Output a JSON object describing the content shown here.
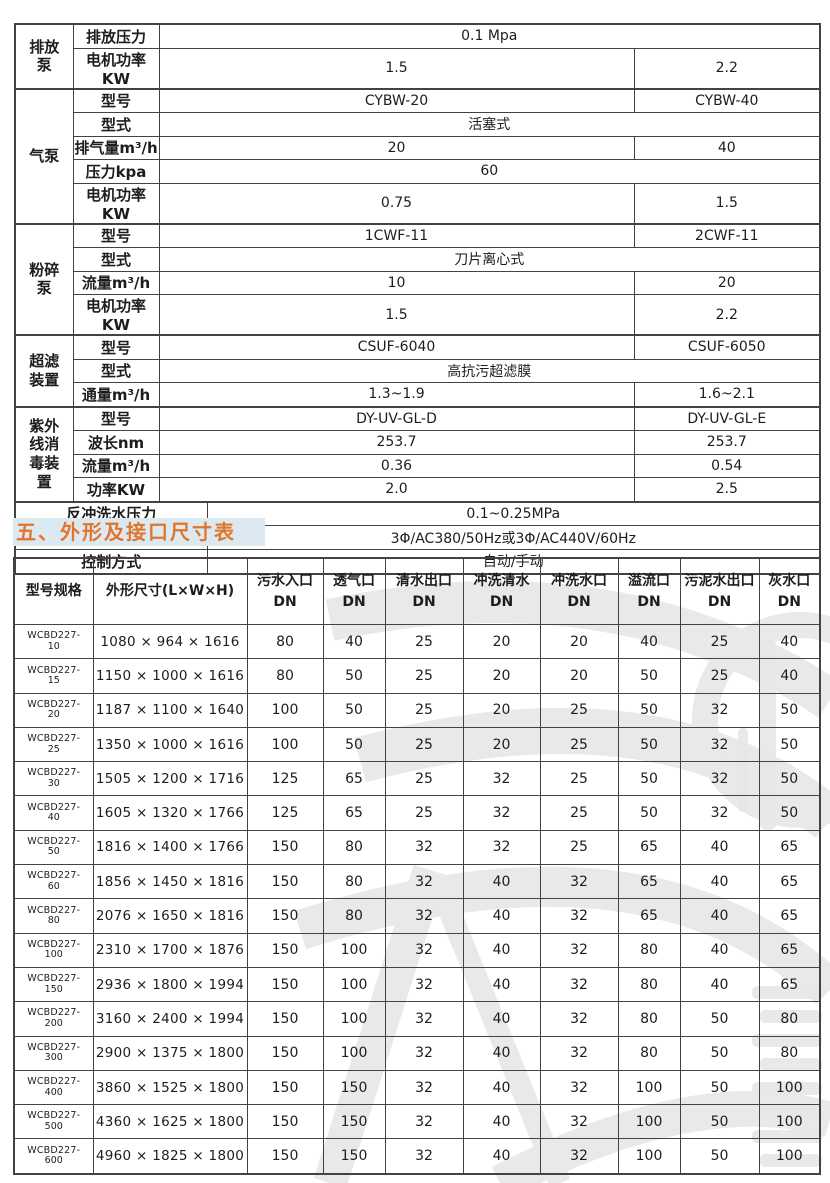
{
  "colors": {
    "border": "#434343",
    "title_orange": "#e0762c",
    "title_bar_bg": "#dde9f0",
    "watermark_gray": "#e7e7e7"
  },
  "section": {
    "title": "五、外形及接口尺寸表"
  },
  "spec_table": {
    "groups": [
      {
        "name": "排放泵",
        "rows": [
          {
            "label": "排放压力",
            "span": "0.1 Mpa"
          },
          {
            "label": "电机功率KW",
            "v1": "1.5",
            "v2": "2.2"
          }
        ]
      },
      {
        "name": "气泵",
        "rows": [
          {
            "label": "型号",
            "v1": "CYBW-20",
            "v2": "CYBW-40"
          },
          {
            "label": "型式",
            "span": "活塞式"
          },
          {
            "label": "排气量m³/h",
            "v1": "20",
            "v2": "40"
          },
          {
            "label": "压力kpa",
            "span": "60"
          },
          {
            "label": "电机功率KW",
            "v1": "0.75",
            "v2": "1.5"
          }
        ]
      },
      {
        "name": "粉碎泵",
        "rows": [
          {
            "label": "型号",
            "v1": "1CWF-11",
            "v2": "2CWF-11"
          },
          {
            "label": "型式",
            "span": "刀片离心式"
          },
          {
            "label": "流量m³/h",
            "v1": "10",
            "v2": "20"
          },
          {
            "label": "电机功率KW",
            "v1": "1.5",
            "v2": "2.2"
          }
        ]
      },
      {
        "name": "超滤装置",
        "rows": [
          {
            "label": "型号",
            "v1": "CSUF-6040",
            "v2": "CSUF-6050"
          },
          {
            "label": "型式",
            "span": "高抗污超滤膜"
          },
          {
            "label": "通量m³/h",
            "v1": "1.3~1.9",
            "v2": "1.6~2.1"
          }
        ]
      },
      {
        "name": "紫外线消毒装置",
        "rows": [
          {
            "label": "型号",
            "v1": "DY-UV-GL-D",
            "v2": "DY-UV-GL-E"
          },
          {
            "label": "波长nm",
            "v1": "253.7",
            "v2": "253.7"
          },
          {
            "label": "流量m³/h",
            "v1": "0.36",
            "v2": "0.54"
          },
          {
            "label": "功率KW",
            "v1": "2.0",
            "v2": "2.5"
          }
        ]
      }
    ],
    "footer_rows": [
      {
        "label": "反冲洗水压力",
        "value": "0.1~0.25MPa"
      },
      {
        "label": "电源",
        "value": "3Φ/AC380/50Hz或3Φ/AC440V/60Hz"
      },
      {
        "label": "控制方式",
        "value": "自动/手动"
      }
    ]
  },
  "dim_table": {
    "headers": [
      "型号规格",
      "外形尺寸(L×W×H)",
      "污水入口\nDN",
      "透气口\nDN",
      "清水出口\nDN",
      "冲洗清水\nDN",
      "冲洗水口\nDN",
      "溢流口\nDN",
      "污泥水出口\nDN",
      "灰水口\nDN"
    ],
    "model_prefix": "WCBD227-",
    "rows": [
      {
        "model": "10",
        "dims": "1080 × 964 × 1616",
        "values": [
          80,
          40,
          25,
          20,
          20,
          40,
          25,
          40
        ]
      },
      {
        "model": "15",
        "dims": "1150 × 1000 × 1616",
        "values": [
          80,
          50,
          25,
          20,
          20,
          50,
          25,
          40
        ]
      },
      {
        "model": "20",
        "dims": "1187 × 1100 × 1640",
        "values": [
          100,
          50,
          25,
          20,
          25,
          50,
          32,
          50
        ]
      },
      {
        "model": "25",
        "dims": "1350 × 1000 × 1616",
        "values": [
          100,
          50,
          25,
          20,
          25,
          50,
          32,
          50
        ]
      },
      {
        "model": "30",
        "dims": "1505 × 1200 × 1716",
        "values": [
          125,
          65,
          25,
          32,
          25,
          50,
          32,
          50
        ]
      },
      {
        "model": "40",
        "dims": "1605 × 1320 × 1766",
        "values": [
          125,
          65,
          25,
          32,
          25,
          50,
          32,
          50
        ]
      },
      {
        "model": "50",
        "dims": "1816 × 1400 × 1766",
        "values": [
          150,
          80,
          32,
          32,
          25,
          65,
          40,
          65
        ]
      },
      {
        "model": "60",
        "dims": "1856 × 1450 × 1816",
        "values": [
          150,
          80,
          32,
          40,
          32,
          65,
          40,
          65
        ]
      },
      {
        "model": "80",
        "dims": "2076 × 1650 × 1816",
        "values": [
          150,
          80,
          32,
          40,
          32,
          65,
          40,
          65
        ]
      },
      {
        "model": "100",
        "dims": "2310 × 1700 × 1876",
        "values": [
          150,
          100,
          32,
          40,
          32,
          80,
          40,
          65
        ]
      },
      {
        "model": "150",
        "dims": "2936 × 1800 × 1994",
        "values": [
          150,
          100,
          32,
          40,
          32,
          80,
          40,
          65
        ]
      },
      {
        "model": "200",
        "dims": "3160 × 2400 × 1994",
        "values": [
          150,
          100,
          32,
          40,
          32,
          80,
          50,
          80
        ]
      },
      {
        "model": "300",
        "dims": "2900 × 1375 × 1800",
        "values": [
          150,
          100,
          32,
          40,
          32,
          80,
          50,
          80
        ]
      },
      {
        "model": "400",
        "dims": "3860 × 1525 × 1800",
        "values": [
          150,
          150,
          32,
          40,
          32,
          100,
          50,
          100
        ]
      },
      {
        "model": "500",
        "dims": "4360 × 1625 × 1800",
        "values": [
          150,
          150,
          32,
          40,
          32,
          100,
          50,
          100
        ]
      },
      {
        "model": "600",
        "dims": "4960 × 1825 × 1800",
        "values": [
          150,
          150,
          32,
          40,
          32,
          100,
          50,
          100
        ]
      }
    ]
  }
}
